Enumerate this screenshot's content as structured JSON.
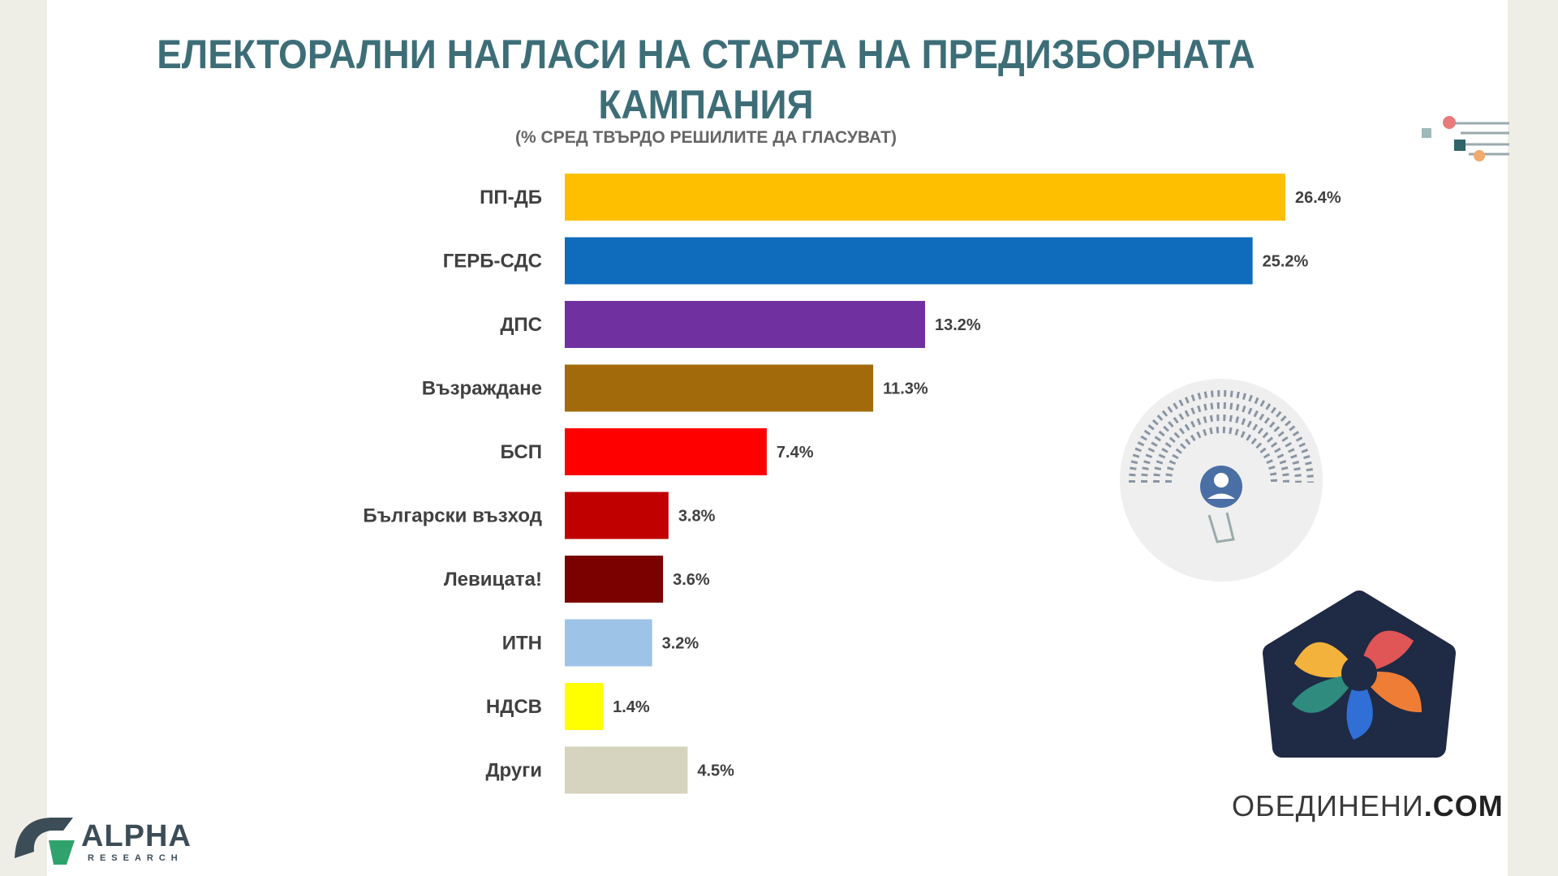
{
  "title_line1": "ЕЛЕКТОРАЛНИ НАГЛАСИ НА СТАРТА НА ПРЕДИЗБОРНАТА",
  "title_line2": "КАМПАНИЯ",
  "subtitle": "(% СРЕД ТВЪРДО РЕШИЛИТЕ ДА ГЛАСУВАТ)",
  "logos": {
    "alpha_research": "ALPHA",
    "alpha_research_sub": "RESEARCH",
    "obedineni_prefix": "ОБЕДИНЕНИ",
    "obedineni_suffix": ".COM"
  },
  "chart_data": {
    "type": "bar",
    "orientation": "horizontal",
    "categories": [
      "ПП-ДБ",
      "ГЕРБ-СДС",
      "ДПС",
      "Възраждане",
      "БСП",
      "Български възход",
      "Левицата!",
      "ИТН",
      "НДСВ",
      "Други"
    ],
    "values": [
      26.4,
      25.2,
      13.2,
      11.3,
      7.4,
      3.8,
      3.6,
      3.2,
      1.4,
      4.5
    ],
    "value_labels": [
      "26.4%",
      "25.2%",
      "13.2%",
      "11.3%",
      "7.4%",
      "3.8%",
      "3.6%",
      "3.2%",
      "1.4%",
      "4.5%"
    ],
    "colors": [
      "#fdbf00",
      "#0f6cbd",
      "#7030a0",
      "#a26a0b",
      "#fe0000",
      "#c00000",
      "#7b0000",
      "#9dc3e6",
      "#ffff00",
      "#d6d3be"
    ],
    "title": "ЕЛЕКТОРАЛНИ НАГЛАСИ НА СТАРТА НА ПРЕДИЗБОРНАТА КАМПАНИЯ",
    "subtitle": "(% СРЕД ТВЪРДО РЕШИЛИТЕ ДА ГЛАСУВАТ)",
    "xlim": [
      0,
      26.4
    ],
    "grid": false,
    "legend": "none"
  }
}
